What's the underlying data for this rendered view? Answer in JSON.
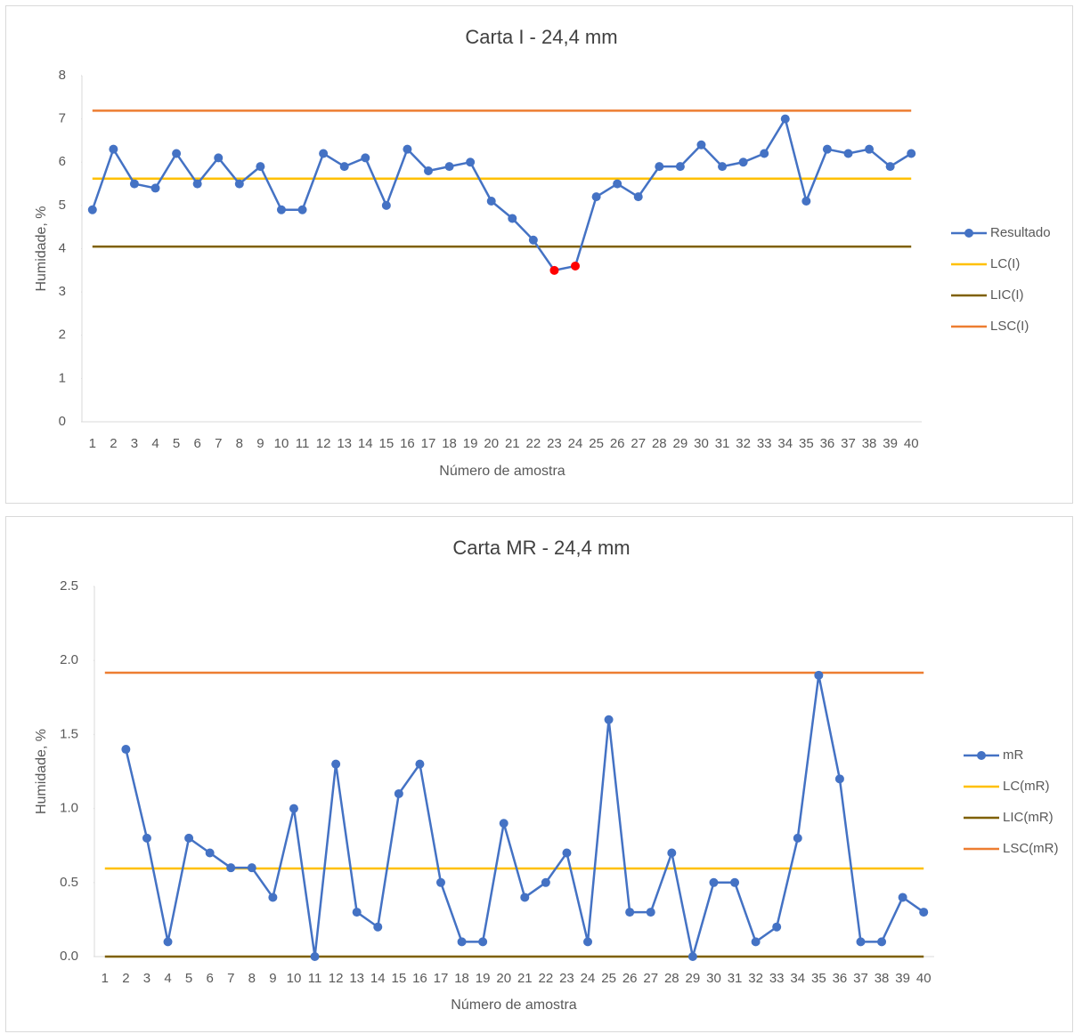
{
  "chart_data": [
    {
      "type": "line",
      "title": "Carta I - 24,4 mm",
      "x_label": "Número de amostra",
      "y_label": "Humidade, %",
      "categories": [
        1,
        2,
        3,
        4,
        5,
        6,
        7,
        8,
        9,
        10,
        11,
        12,
        13,
        14,
        15,
        16,
        17,
        18,
        19,
        20,
        21,
        22,
        23,
        24,
        25,
        26,
        27,
        28,
        29,
        30,
        31,
        32,
        33,
        34,
        35,
        36,
        37,
        38,
        39,
        40
      ],
      "ylim": [
        0,
        8
      ],
      "yticks": [
        0,
        1,
        2,
        3,
        4,
        5,
        6,
        7,
        8
      ],
      "legend": "right",
      "highlight": {
        "color": "#ff0000",
        "categories": [
          23,
          24
        ]
      },
      "series": [
        {
          "name": "Resultado",
          "color": "#4472c4",
          "marker": true,
          "values": [
            4.9,
            6.3,
            5.5,
            5.4,
            6.2,
            5.5,
            6.1,
            5.5,
            5.9,
            4.9,
            4.9,
            6.2,
            5.9,
            6.1,
            5.0,
            6.3,
            5.8,
            5.9,
            6.0,
            5.1,
            4.7,
            4.2,
            3.5,
            3.6,
            5.2,
            5.5,
            5.2,
            5.9,
            5.9,
            6.4,
            5.9,
            6.0,
            6.2,
            7.0,
            5.1,
            6.3,
            6.2,
            6.3,
            5.9,
            6.2
          ]
        },
        {
          "name": "LC(I)",
          "color": "#ffc000",
          "marker": false,
          "values": [
            5.62,
            5.62,
            5.62,
            5.62,
            5.62,
            5.62,
            5.62,
            5.62,
            5.62,
            5.62,
            5.62,
            5.62,
            5.62,
            5.62,
            5.62,
            5.62,
            5.62,
            5.62,
            5.62,
            5.62,
            5.62,
            5.62,
            5.62,
            5.62,
            5.62,
            5.62,
            5.62,
            5.62,
            5.62,
            5.62,
            5.62,
            5.62,
            5.62,
            5.62,
            5.62,
            5.62,
            5.62,
            5.62,
            5.62,
            5.62
          ]
        },
        {
          "name": "LIC(I)",
          "color": "#7f6000",
          "marker": false,
          "values": [
            4.05,
            4.05,
            4.05,
            4.05,
            4.05,
            4.05,
            4.05,
            4.05,
            4.05,
            4.05,
            4.05,
            4.05,
            4.05,
            4.05,
            4.05,
            4.05,
            4.05,
            4.05,
            4.05,
            4.05,
            4.05,
            4.05,
            4.05,
            4.05,
            4.05,
            4.05,
            4.05,
            4.05,
            4.05,
            4.05,
            4.05,
            4.05,
            4.05,
            4.05,
            4.05,
            4.05,
            4.05,
            4.05,
            4.05,
            4.05
          ]
        },
        {
          "name": "LSC(I)",
          "color": "#ed7d31",
          "marker": false,
          "values": [
            7.19,
            7.19,
            7.19,
            7.19,
            7.19,
            7.19,
            7.19,
            7.19,
            7.19,
            7.19,
            7.19,
            7.19,
            7.19,
            7.19,
            7.19,
            7.19,
            7.19,
            7.19,
            7.19,
            7.19,
            7.19,
            7.19,
            7.19,
            7.19,
            7.19,
            7.19,
            7.19,
            7.19,
            7.19,
            7.19,
            7.19,
            7.19,
            7.19,
            7.19,
            7.19,
            7.19,
            7.19,
            7.19,
            7.19,
            7.19
          ]
        }
      ]
    },
    {
      "type": "line",
      "title": "Carta MR - 24,4 mm",
      "x_label": "Número de amostra",
      "y_label": "Humidade, %",
      "categories": [
        1,
        2,
        3,
        4,
        5,
        6,
        7,
        8,
        9,
        10,
        11,
        12,
        13,
        14,
        15,
        16,
        17,
        18,
        19,
        20,
        21,
        22,
        23,
        24,
        25,
        26,
        27,
        28,
        29,
        30,
        31,
        32,
        33,
        34,
        35,
        36,
        37,
        38,
        39,
        40
      ],
      "ylim": [
        0,
        2.5
      ],
      "yticks": [
        {
          "value": 0,
          "label": "0.0"
        },
        0.5,
        {
          "value": 1,
          "label": "1.0"
        },
        1.5,
        {
          "value": 2,
          "label": "2.0"
        },
        2.5
      ],
      "legend": "right",
      "series": [
        {
          "name": "mR",
          "color": "#4472c4",
          "marker": true,
          "values": [
            null,
            1.4,
            0.8,
            0.1,
            0.8,
            0.7,
            0.6,
            0.6,
            0.4,
            1.0,
            0.0,
            1.3,
            0.3,
            0.2,
            1.1,
            1.3,
            0.5,
            0.1,
            0.1,
            0.9,
            0.4,
            0.5,
            0.7,
            0.1,
            1.6,
            0.3,
            0.3,
            0.7,
            0.0,
            0.5,
            0.5,
            0.1,
            0.2,
            0.8,
            1.9,
            1.2,
            0.1,
            0.1,
            0.4,
            0.3
          ]
        },
        {
          "name": "LC(mR)",
          "color": "#ffc000",
          "marker": false,
          "values": [
            0.595,
            0.595,
            0.595,
            0.595,
            0.595,
            0.595,
            0.595,
            0.595,
            0.595,
            0.595,
            0.595,
            0.595,
            0.595,
            0.595,
            0.595,
            0.595,
            0.595,
            0.595,
            0.595,
            0.595,
            0.595,
            0.595,
            0.595,
            0.595,
            0.595,
            0.595,
            0.595,
            0.595,
            0.595,
            0.595,
            0.595,
            0.595,
            0.595,
            0.595,
            0.595,
            0.595,
            0.595,
            0.595,
            0.595,
            0.595
          ]
        },
        {
          "name": "LIC(mR)",
          "color": "#7f6000",
          "marker": false,
          "values": [
            0,
            0,
            0,
            0,
            0,
            0,
            0,
            0,
            0,
            0,
            0,
            0,
            0,
            0,
            0,
            0,
            0,
            0,
            0,
            0,
            0,
            0,
            0,
            0,
            0,
            0,
            0,
            0,
            0,
            0,
            0,
            0,
            0,
            0,
            0,
            0,
            0,
            0,
            0,
            0
          ]
        },
        {
          "name": "LSC(mR)",
          "color": "#ed7d31",
          "marker": false,
          "values": [
            1.917,
            1.917,
            1.917,
            1.917,
            1.917,
            1.917,
            1.917,
            1.917,
            1.917,
            1.917,
            1.917,
            1.917,
            1.917,
            1.917,
            1.917,
            1.917,
            1.917,
            1.917,
            1.917,
            1.917,
            1.917,
            1.917,
            1.917,
            1.917,
            1.917,
            1.917,
            1.917,
            1.917,
            1.917,
            1.917,
            1.917,
            1.917,
            1.917,
            1.917,
            1.917,
            1.917,
            1.917,
            1.917,
            1.917,
            1.917
          ]
        }
      ]
    }
  ]
}
